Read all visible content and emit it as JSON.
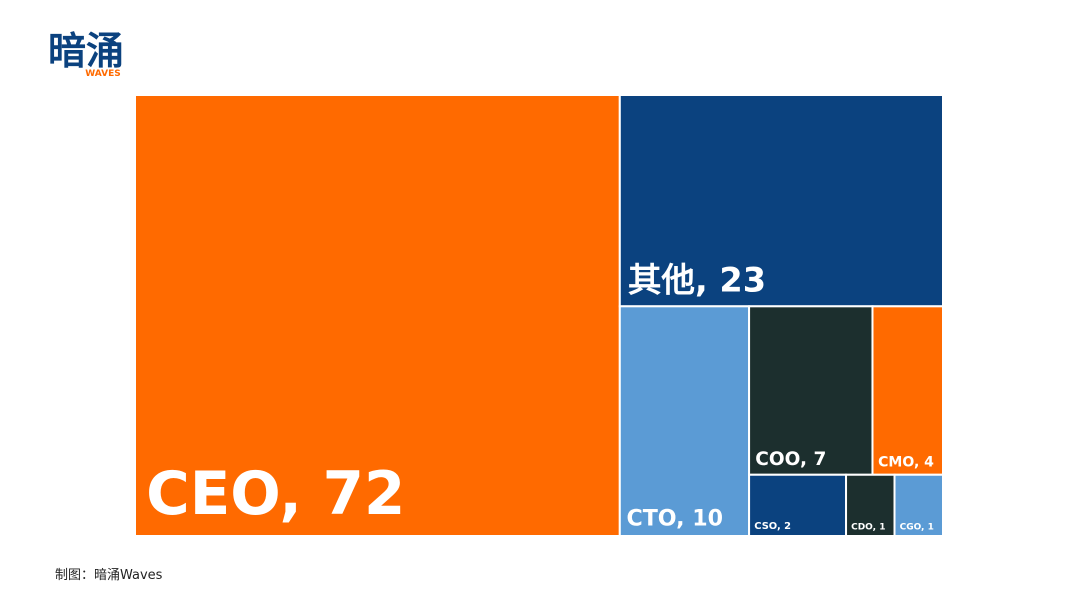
{
  "brand": {
    "name": "暗涌",
    "tag": "WAVES"
  },
  "footer": "制图：暗涌Waves",
  "chart_data": {
    "type": "treemap",
    "values": [
      72,
      23,
      10,
      7,
      4,
      2,
      1,
      1
    ],
    "value_labels": [
      "CEO, 72",
      "其他, 23",
      "CTO, 10",
      "COO, 7",
      "CMO, 4",
      "CSO, 2",
      "CDO, 1",
      "CGO, 1"
    ],
    "colors": [
      "#ff6a00",
      "#0b427f",
      "#5b9bd5",
      "#1c2f2e",
      "#ff6a00",
      "#0b427f",
      "#1c2f2e",
      "#5b9bd5"
    ]
  }
}
